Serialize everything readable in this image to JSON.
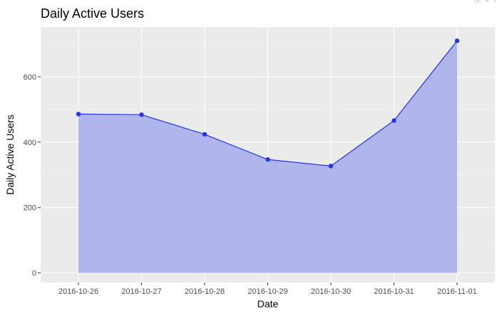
{
  "window": {
    "controls": [
      "⎘",
      "×",
      "›"
    ]
  },
  "chart_data": {
    "type": "area",
    "title": "Daily Active Users",
    "xlabel": "Date",
    "ylabel": "Daily Active Users",
    "categories": [
      "2016-10-26",
      "2016-10-27",
      "2016-10-28",
      "2016-10-29",
      "2016-10-30",
      "2016-10-31",
      "2016-11-01"
    ],
    "series": [
      {
        "name": "Daily Active Users",
        "values": [
          486,
          484,
          424,
          347,
          327,
          466,
          710
        ]
      }
    ],
    "yticks": [
      0,
      200,
      400,
      600
    ],
    "ylim": [
      -29,
      752
    ],
    "grid": true,
    "legend": "none",
    "colors": {
      "line": "#2233ee",
      "point": "#2233ee",
      "fill": "#aab0ee",
      "panel": "#ebebeb",
      "grid_major": "#ffffff",
      "grid_minor": "#f4f4f4"
    }
  }
}
